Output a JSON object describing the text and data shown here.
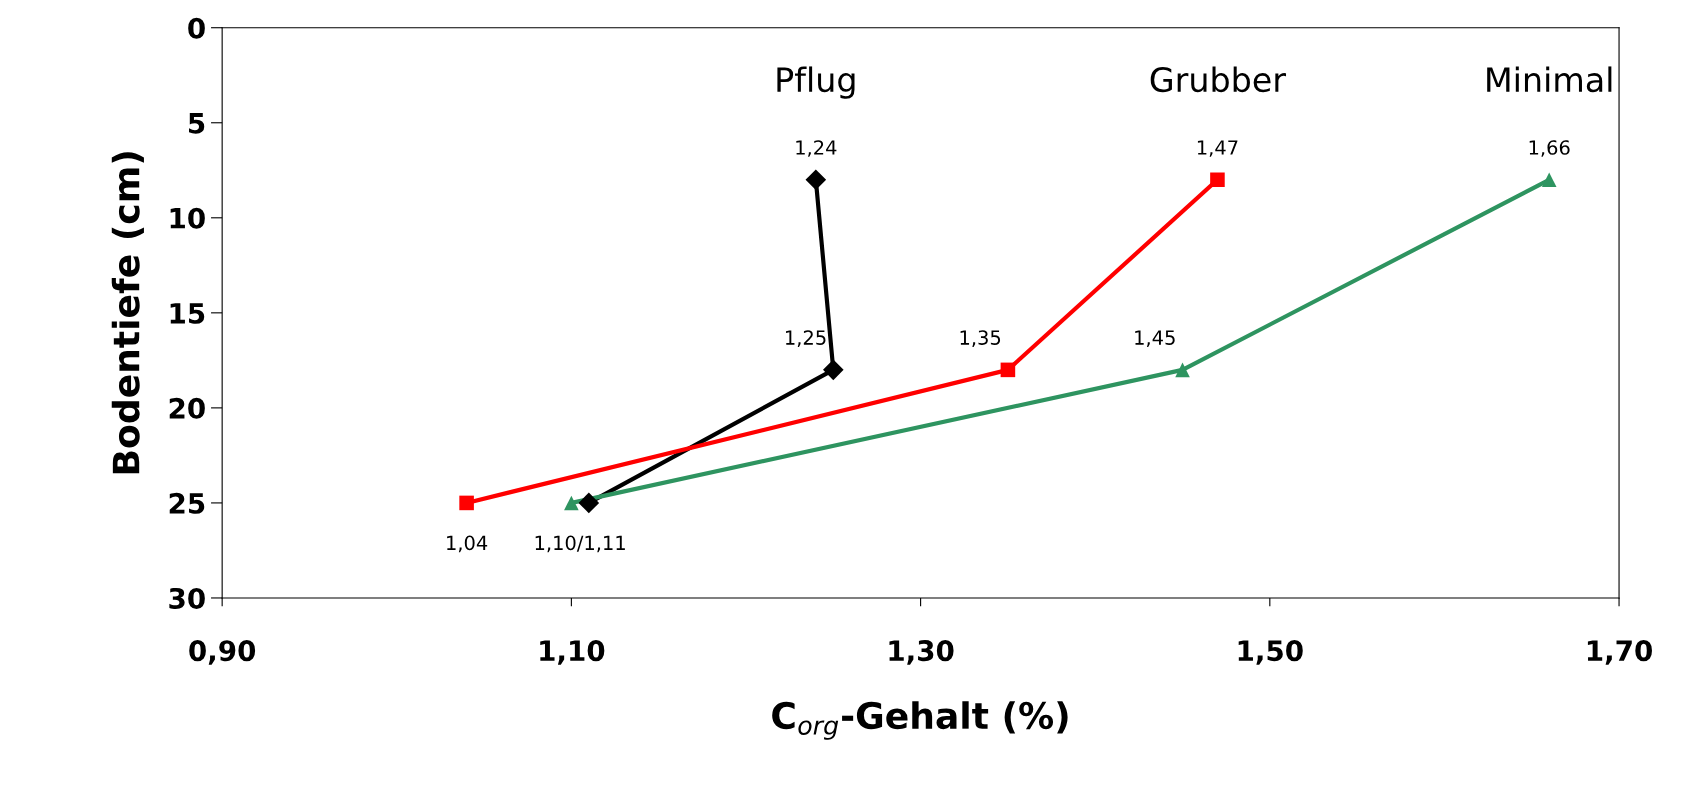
{
  "chart_data": {
    "type": "line",
    "orientation": "horizontal",
    "xlabel": "C$_{org}$-Gehalt (%)",
    "ylabel": "Bodentiefe (cm)",
    "xlim": [
      0.9,
      1.7
    ],
    "xticks": [
      {
        "value": 0.9,
        "label": "0,90"
      },
      {
        "value": 1.1,
        "label": "1,10"
      },
      {
        "value": 1.3,
        "label": "1,30"
      },
      {
        "value": 1.5,
        "label": "1,50"
      },
      {
        "value": 1.7,
        "label": "1,70"
      }
    ],
    "ylim": [
      30,
      0
    ],
    "yticks": [
      0,
      5,
      10,
      15,
      20,
      25,
      30
    ],
    "grid": false,
    "legend": false,
    "series": [
      {
        "name": "Pflug",
        "color": "#000000",
        "marker": "diamond",
        "x": [
          8,
          18,
          25
        ],
        "values": [
          1.24,
          1.25,
          1.11
        ],
        "value_labels": [
          "1,24",
          "1,25",
          null
        ]
      },
      {
        "name": "Grubber",
        "color": "#ff0000",
        "marker": "square",
        "x": [
          8,
          18,
          25
        ],
        "values": [
          1.47,
          1.35,
          1.04
        ],
        "value_labels": [
          "1,47",
          "1,35",
          "1,04"
        ]
      },
      {
        "name": "Minimal",
        "color": "#2e9460",
        "marker": "triangle",
        "x": [
          8,
          18,
          25
        ],
        "values": [
          1.66,
          1.45,
          1.1
        ],
        "value_labels": [
          "1,66",
          "1,45",
          null
        ]
      }
    ],
    "annotations": [
      {
        "text": "1,10/1,11",
        "x": 1.105,
        "y": 25
      }
    ]
  }
}
